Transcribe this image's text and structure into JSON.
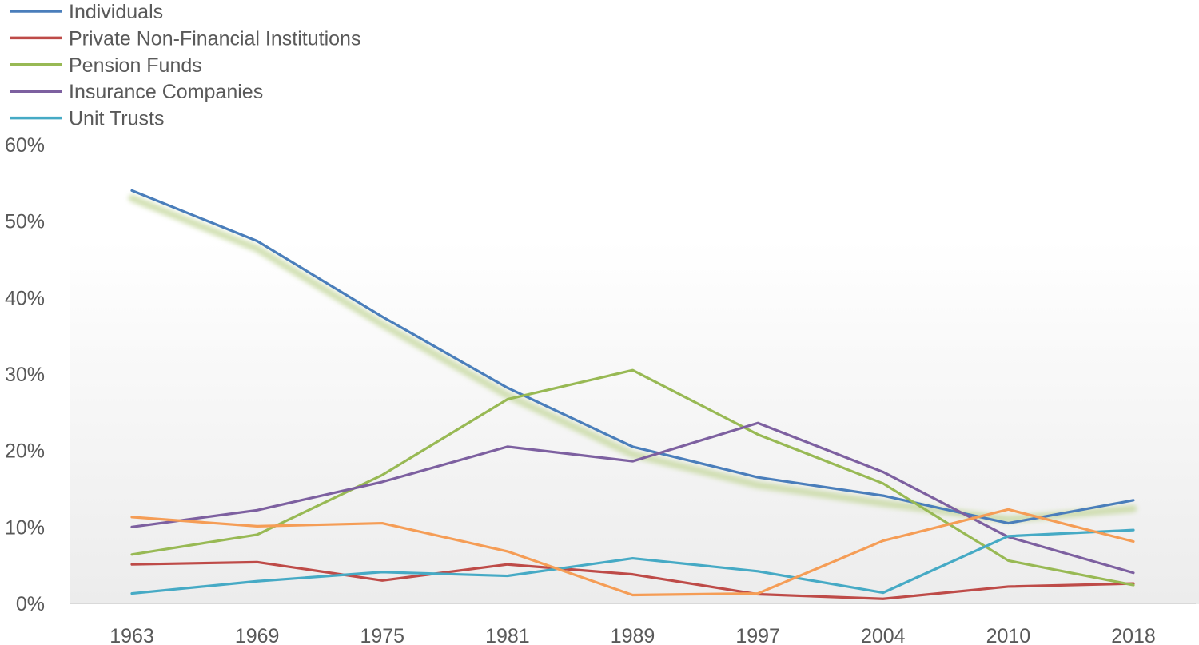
{
  "chart_data": {
    "type": "line",
    "title": "",
    "xlabel": "",
    "ylabel": "",
    "categories": [
      "1963",
      "1969",
      "1975",
      "1981",
      "1989",
      "1997",
      "2004",
      "2010",
      "2018"
    ],
    "ylim": [
      0,
      60
    ],
    "y_ticks": [
      "0%",
      "10%",
      "20%",
      "30%",
      "40%",
      "50%",
      "60%"
    ],
    "y_tick_values": [
      0,
      10,
      20,
      30,
      40,
      50,
      60
    ],
    "grid": false,
    "legend_position": "top-left",
    "series": [
      {
        "name": "Individuals",
        "color": "#4a7ebb",
        "values": [
          54.0,
          47.4,
          37.5,
          28.2,
          20.5,
          16.5,
          14.1,
          10.5,
          13.5
        ],
        "in_legend": true
      },
      {
        "name": "Private Non-Financial Institutions",
        "color": "#be4b48",
        "values": [
          5.1,
          5.4,
          3.0,
          5.1,
          3.8,
          1.2,
          0.6,
          2.2,
          2.6
        ],
        "in_legend": true
      },
      {
        "name": "Pension Funds",
        "color": "#98b954",
        "values": [
          6.4,
          9.0,
          16.8,
          26.7,
          30.5,
          22.1,
          15.7,
          5.6,
          2.4
        ],
        "in_legend": true
      },
      {
        "name": "Insurance Companies",
        "color": "#7d60a0",
        "values": [
          10.0,
          12.2,
          15.9,
          20.5,
          18.6,
          23.6,
          17.2,
          8.7,
          4.0
        ],
        "in_legend": true
      },
      {
        "name": "Unit Trusts",
        "color": "#46aac5",
        "values": [
          1.3,
          2.9,
          4.1,
          3.6,
          5.9,
          4.2,
          1.4,
          8.8,
          9.6
        ],
        "in_legend": true
      },
      {
        "name": "",
        "color": "#f59d56",
        "values": [
          11.3,
          10.1,
          10.5,
          6.8,
          1.1,
          1.3,
          8.2,
          12.3,
          8.1
        ],
        "in_legend": false
      }
    ],
    "trend_overlay": {
      "color": "#c4d79b",
      "values": [
        53.0,
        46.4,
        36.5,
        27.2,
        19.5,
        15.5,
        13.1,
        11.0,
        12.4
      ]
    }
  }
}
